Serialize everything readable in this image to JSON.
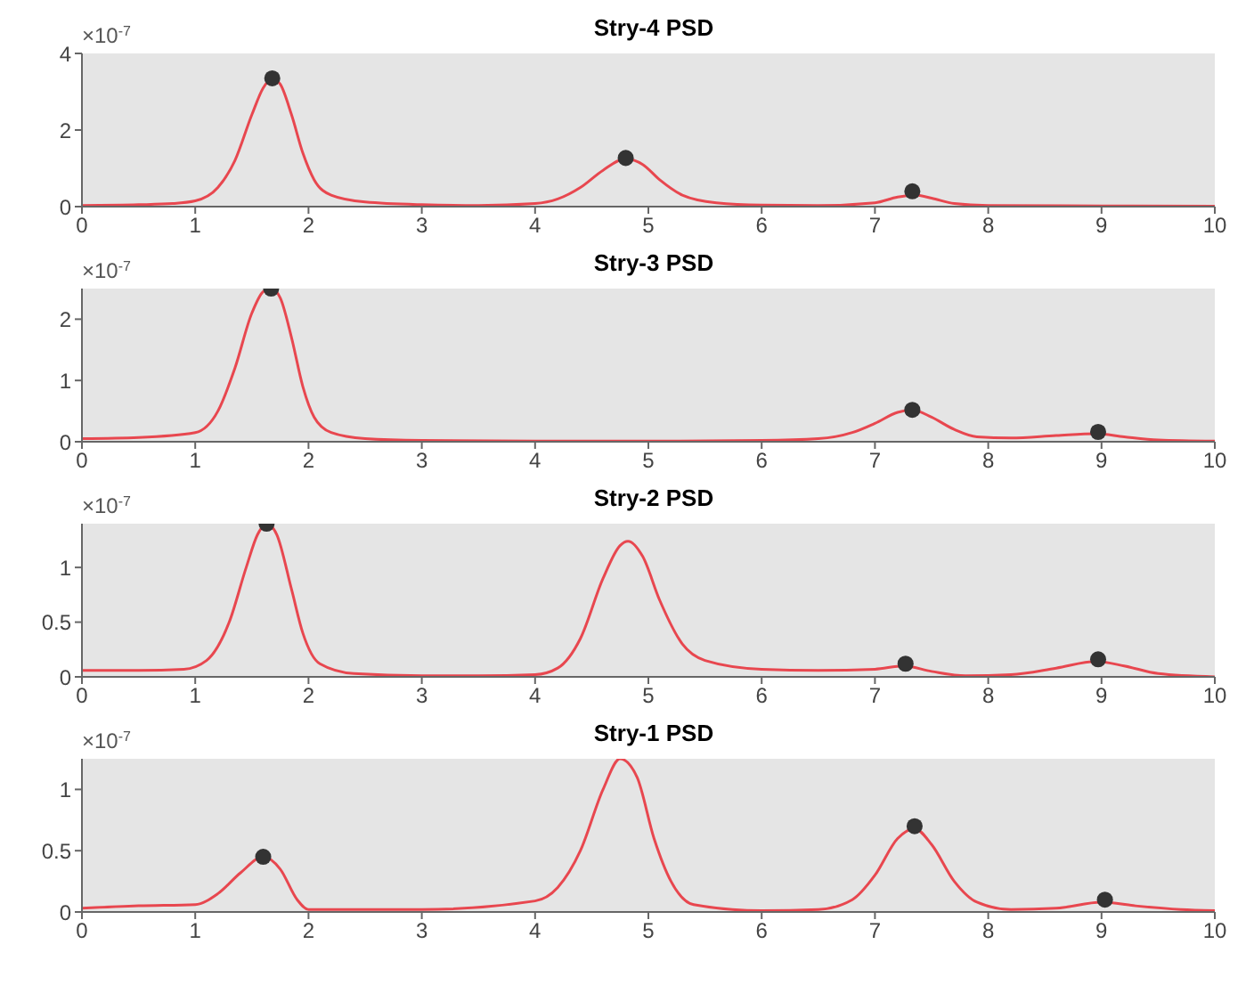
{
  "chart_data": [
    {
      "type": "line",
      "title": "Stry-4 PSD",
      "ylabel": "×10$^{-7}$",
      "xlim": [
        0,
        10
      ],
      "xticks": [
        0,
        1,
        2,
        3,
        4,
        5,
        6,
        7,
        8,
        9,
        10
      ],
      "ylim": [
        0,
        4
      ],
      "yticks": [
        0,
        2,
        4
      ],
      "grid": false,
      "series": [
        {
          "type": "line",
          "color": "#e8474f",
          "marker": "none",
          "line_style": "solid",
          "x": [
            0,
            0.5,
            0.8,
            1.0,
            1.2,
            1.35,
            1.5,
            1.6,
            1.68,
            1.75,
            1.85,
            1.95,
            2.05,
            2.2,
            2.5,
            3,
            3.5,
            4,
            4.2,
            4.4,
            4.6,
            4.8,
            4.95,
            5.1,
            5.3,
            5.6,
            6,
            6.5,
            7,
            7.2,
            7.35,
            7.5,
            7.7,
            8,
            9,
            10
          ],
          "values": [
            0.03,
            0.05,
            0.08,
            0.15,
            0.5,
            1.2,
            2.4,
            3.1,
            3.35,
            3.2,
            2.4,
            1.4,
            0.7,
            0.3,
            0.12,
            0.05,
            0.03,
            0.08,
            0.2,
            0.5,
            0.95,
            1.25,
            1.1,
            0.7,
            0.3,
            0.1,
            0.04,
            0.03,
            0.1,
            0.25,
            0.3,
            0.22,
            0.08,
            0.03,
            0.02,
            0.01
          ]
        },
        {
          "type": "scatter",
          "color": "#333333",
          "marker": "circle",
          "x": [
            1.68,
            4.8,
            7.33
          ],
          "values": [
            3.35,
            1.27,
            0.4
          ]
        }
      ]
    },
    {
      "type": "line",
      "title": "Stry-3 PSD",
      "ylabel": "×10$^{-7}$",
      "xlim": [
        0,
        10
      ],
      "xticks": [
        0,
        1,
        2,
        3,
        4,
        5,
        6,
        7,
        8,
        9,
        10
      ],
      "ylim": [
        0,
        2.5
      ],
      "yticks": [
        0,
        1,
        2
      ],
      "grid": false,
      "series": [
        {
          "type": "line",
          "color": "#e8474f",
          "marker": "none",
          "line_style": "solid",
          "x": [
            0,
            0.5,
            1,
            1.2,
            1.35,
            1.5,
            1.6,
            1.67,
            1.75,
            1.85,
            1.95,
            2.05,
            2.2,
            2.5,
            3,
            4,
            5,
            6,
            6.5,
            6.8,
            7.0,
            7.2,
            7.33,
            7.5,
            7.7,
            7.9,
            8.2,
            8.6,
            8.95,
            9.2,
            9.5,
            10
          ],
          "values": [
            0.05,
            0.07,
            0.15,
            0.5,
            1.2,
            2.1,
            2.45,
            2.5,
            2.35,
            1.7,
            0.9,
            0.4,
            0.15,
            0.05,
            0.02,
            0.01,
            0.01,
            0.02,
            0.05,
            0.15,
            0.3,
            0.48,
            0.52,
            0.4,
            0.2,
            0.08,
            0.06,
            0.1,
            0.13,
            0.08,
            0.03,
            0.01
          ]
        },
        {
          "type": "scatter",
          "color": "#333333",
          "marker": "circle",
          "x": [
            1.67,
            7.33,
            8.97
          ],
          "values": [
            2.5,
            0.52,
            0.16
          ]
        }
      ]
    },
    {
      "type": "line",
      "title": "Stry-2 PSD",
      "ylabel": "×10$^{-7}$",
      "xlim": [
        0,
        10
      ],
      "xticks": [
        0,
        1,
        2,
        3,
        4,
        5,
        6,
        7,
        8,
        9,
        10
      ],
      "ylim": [
        0,
        1.4
      ],
      "yticks": [
        0,
        0.5,
        1
      ],
      "grid": false,
      "series": [
        {
          "type": "line",
          "color": "#e8474f",
          "marker": "none",
          "line_style": "solid",
          "x": [
            0,
            0.5,
            0.9,
            1.1,
            1.3,
            1.45,
            1.55,
            1.63,
            1.72,
            1.85,
            1.95,
            2.1,
            2.4,
            3,
            3.5,
            4,
            4.2,
            4.4,
            4.6,
            4.75,
            4.82,
            4.95,
            5.1,
            5.3,
            5.5,
            6,
            6.5,
            7,
            7.25,
            7.5,
            7.8,
            8.2,
            8.6,
            8.95,
            9.2,
            9.5,
            10
          ],
          "values": [
            0.06,
            0.06,
            0.07,
            0.15,
            0.5,
            1.0,
            1.3,
            1.4,
            1.3,
            0.8,
            0.4,
            0.12,
            0.03,
            0.01,
            0.01,
            0.02,
            0.08,
            0.35,
            0.9,
            1.2,
            1.24,
            1.1,
            0.7,
            0.3,
            0.15,
            0.07,
            0.06,
            0.07,
            0.1,
            0.05,
            0.01,
            0.02,
            0.08,
            0.14,
            0.1,
            0.03,
            0.0
          ]
        },
        {
          "type": "scatter",
          "color": "#333333",
          "marker": "circle",
          "x": [
            1.63,
            7.27,
            8.97
          ],
          "values": [
            1.4,
            0.12,
            0.16
          ]
        }
      ]
    },
    {
      "type": "line",
      "title": "Stry-1 PSD",
      "ylabel": "×10$^{-7}$",
      "xlim": [
        0,
        10
      ],
      "xticks": [
        0,
        1,
        2,
        3,
        4,
        5,
        6,
        7,
        8,
        9,
        10
      ],
      "ylim": [
        0,
        1.25
      ],
      "yticks": [
        0,
        0.5,
        1
      ],
      "grid": false,
      "series": [
        {
          "type": "line",
          "color": "#e8474f",
          "marker": "none",
          "line_style": "solid",
          "x": [
            0,
            0.5,
            1,
            1.2,
            1.4,
            1.6,
            1.75,
            1.9,
            2.0,
            3,
            4,
            4.2,
            4.4,
            4.6,
            4.75,
            4.9,
            5.05,
            5.2,
            5.4,
            6,
            6.5,
            6.8,
            7.0,
            7.2,
            7.35,
            7.5,
            7.7,
            7.9,
            8.2,
            8.6,
            9.0,
            9.3,
            9.7,
            10
          ],
          "values": [
            0.03,
            0.05,
            0.06,
            0.15,
            0.32,
            0.45,
            0.35,
            0.1,
            0.02,
            0.02,
            0.09,
            0.2,
            0.5,
            1.0,
            1.25,
            1.1,
            0.6,
            0.25,
            0.06,
            0.01,
            0.02,
            0.1,
            0.3,
            0.6,
            0.68,
            0.55,
            0.25,
            0.08,
            0.02,
            0.03,
            0.08,
            0.05,
            0.02,
            0.01
          ]
        },
        {
          "type": "scatter",
          "color": "#333333",
          "marker": "circle",
          "x": [
            1.6,
            7.35,
            9.03
          ],
          "values": [
            0.45,
            0.7,
            0.1
          ]
        }
      ]
    }
  ]
}
